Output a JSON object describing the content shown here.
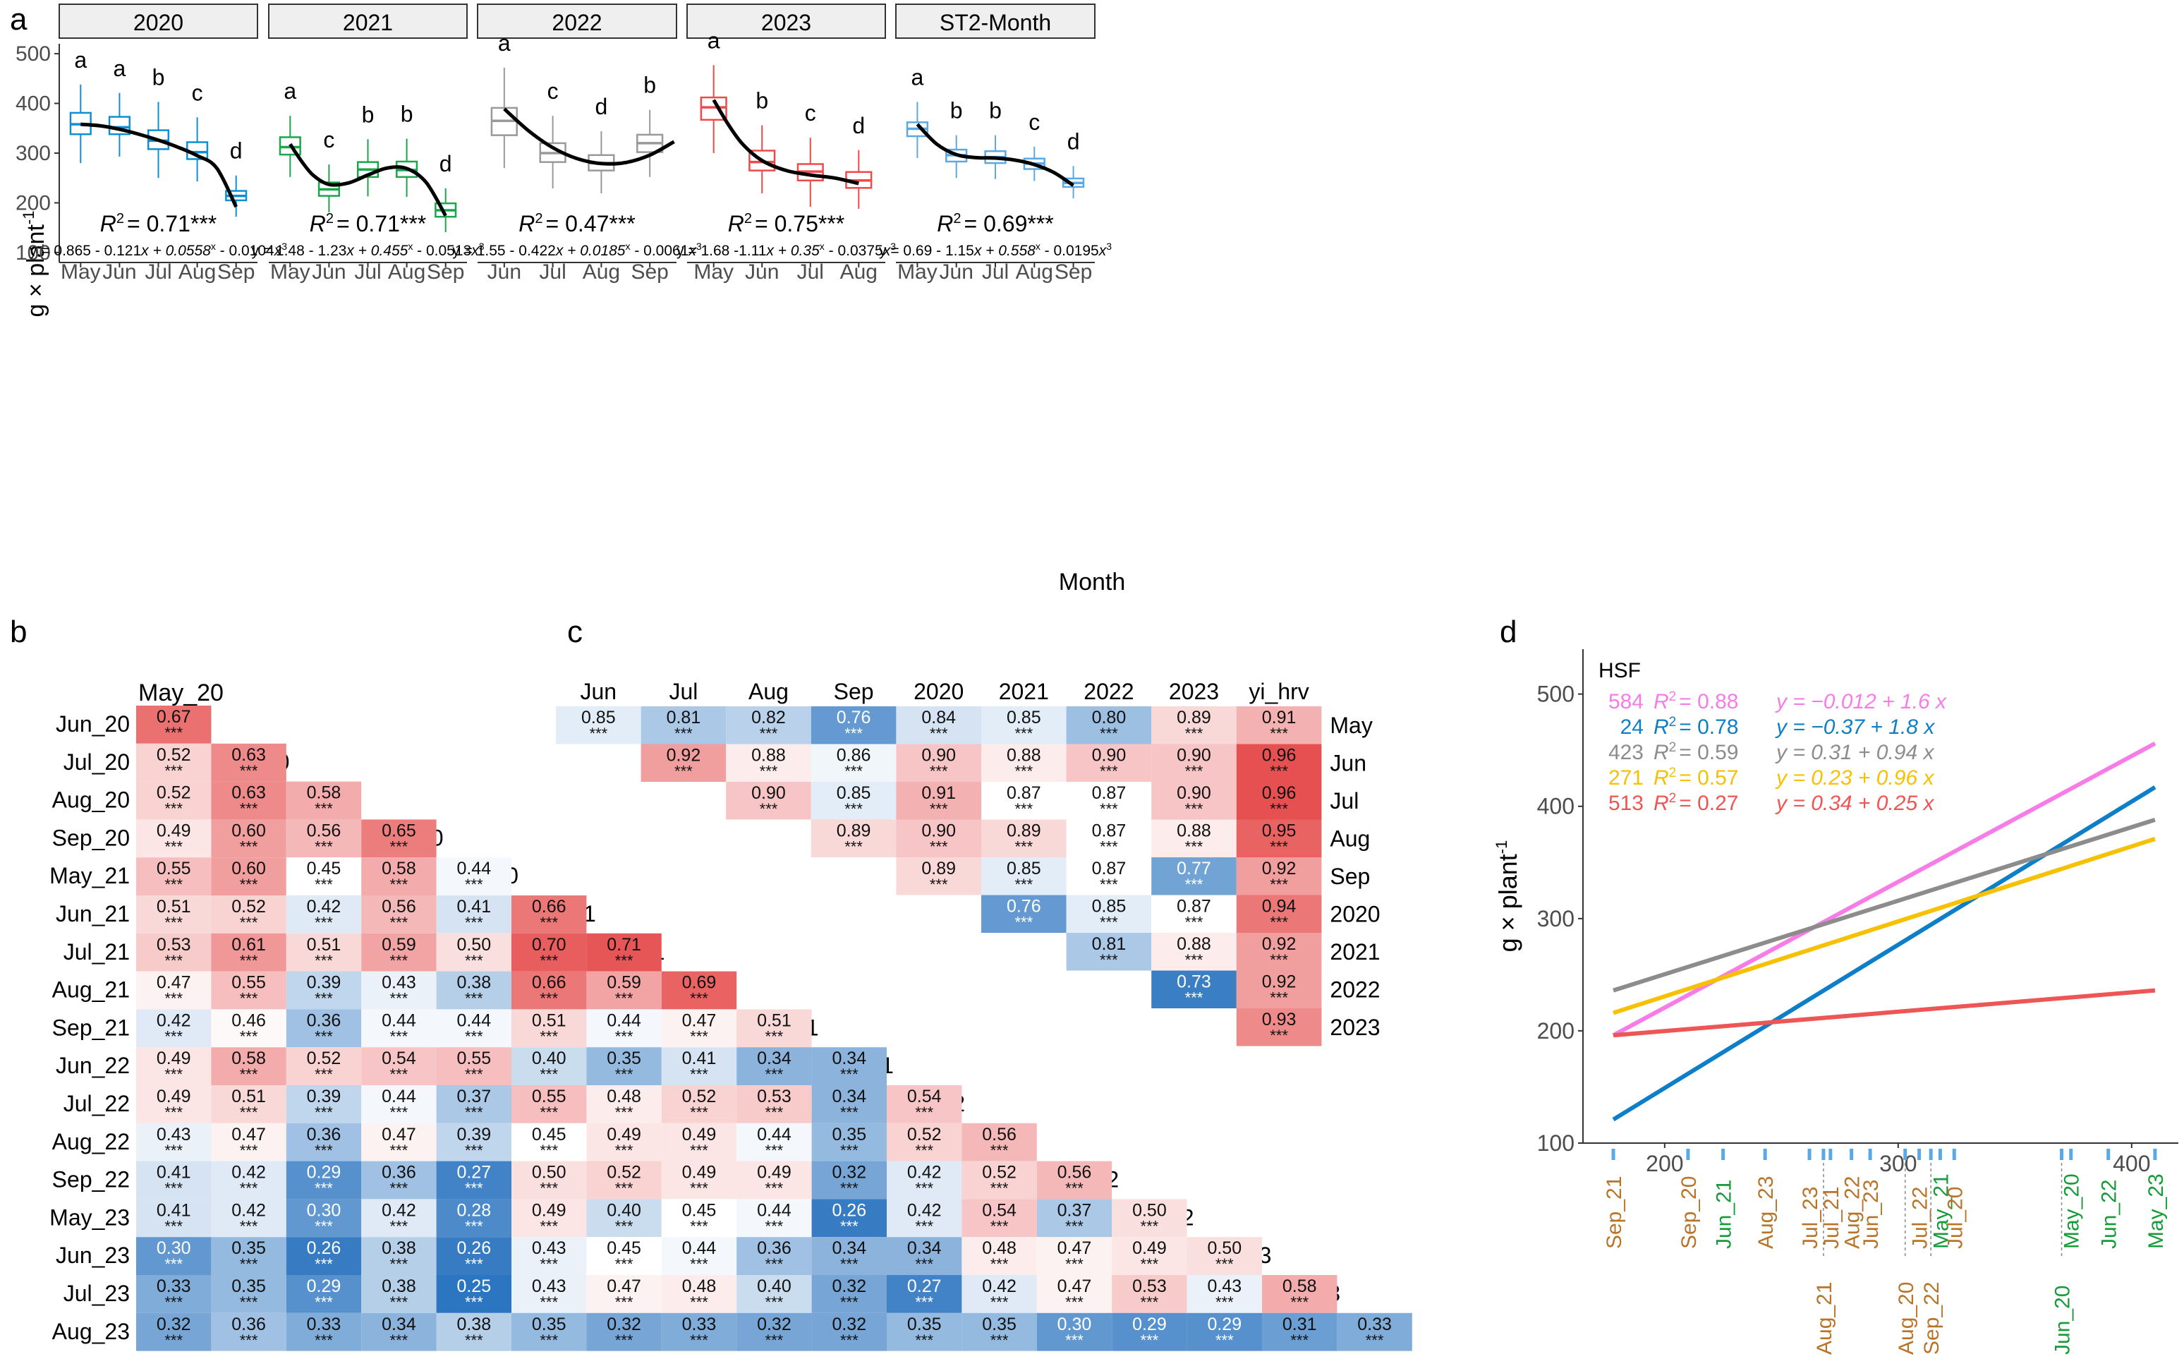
{
  "panel_a": {
    "label": "a",
    "ylabel": "g × plant",
    "ylabel_sup": "-1",
    "xlabel": "Month",
    "y_ticks": [
      "100",
      "200",
      "300",
      "400",
      "500"
    ],
    "r2_label": "R",
    "r2_sup": "2"
  },
  "panel_b": {
    "label": "b"
  },
  "panel_c": {
    "label": "c"
  },
  "panel_d": {
    "label": "d"
  },
  "chart_data": [
    {
      "type": "box",
      "panel": "a",
      "ylim": [
        80,
        520
      ],
      "facets": [
        {
          "title": "2020",
          "categories": [
            "May",
            "Jun",
            "Jul",
            "Aug",
            "Sep"
          ],
          "color": "#0e8fd3",
          "boxes": [
            {
              "lw": 280,
              "q1": 338,
              "med": 358,
              "q3": 381,
              "hw": 438
            },
            {
              "lw": 293,
              "q1": 338,
              "med": 352,
              "q3": 373,
              "hw": 421
            },
            {
              "lw": 250,
              "q1": 308,
              "med": 325,
              "q3": 346,
              "hw": 403
            },
            {
              "lw": 243,
              "q1": 288,
              "med": 302,
              "q3": 322,
              "hw": 372
            },
            {
              "lw": 172,
              "q1": 205,
              "med": 214,
              "q3": 224,
              "hw": 255
            }
          ],
          "letters": [
            "a",
            "a",
            "b",
            "c",
            "d"
          ],
          "r2": "= 0.71***",
          "eq": {
            "a": "y = 0.865 - 0.121",
            "b": "x + 0.0558",
            "c": "x",
            "d": " - 0.0104",
            "e": "x"
          },
          "curve": [
            [
              0,
              358
            ],
            [
              0.5,
              355
            ],
            [
              1,
              348
            ],
            [
              1.5,
              338
            ],
            [
              2,
              326
            ],
            [
              2.5,
              312
            ],
            [
              3,
              295
            ],
            [
              3.5,
              270
            ],
            [
              4,
              192
            ]
          ]
        },
        {
          "title": "2021",
          "categories": [
            "May",
            "Jun",
            "Jul",
            "Aug",
            "Sep"
          ],
          "color": "#1aa64a",
          "boxes": [
            {
              "lw": 252,
              "q1": 297,
              "med": 312,
              "q3": 332,
              "hw": 375
            },
            {
              "lw": 181,
              "q1": 214,
              "med": 227,
              "q3": 241,
              "hw": 277
            },
            {
              "lw": 213,
              "q1": 252,
              "med": 267,
              "q3": 282,
              "hw": 328
            },
            {
              "lw": 212,
              "q1": 252,
              "med": 266,
              "q3": 283,
              "hw": 329
            },
            {
              "lw": 141,
              "q1": 172,
              "med": 185,
              "q3": 199,
              "hw": 229
            }
          ],
          "letters": [
            "a",
            "c",
            "b",
            "b",
            "d"
          ],
          "r2": "= 0.71***",
          "eq": {
            "a": "y = 1.48 - 1.23",
            "b": "x + 0.455",
            "c": "x",
            "d": " - 0.0513",
            "e": "x"
          },
          "curve": [
            [
              0,
              318
            ],
            [
              0.3,
              283
            ],
            [
              0.6,
              255
            ],
            [
              1,
              237
            ],
            [
              1.5,
              240
            ],
            [
              2,
              256
            ],
            [
              2.5,
              270
            ],
            [
              3,
              269
            ],
            [
              3.5,
              241
            ],
            [
              4,
              174
            ]
          ]
        },
        {
          "title": "2022",
          "categories": [
            "Jun",
            "Jul",
            "Aug",
            "Sep"
          ],
          "color": "#999999",
          "boxes": [
            {
              "lw": 270,
              "q1": 336,
              "med": 365,
              "q3": 391,
              "hw": 472
            },
            {
              "lw": 229,
              "q1": 282,
              "med": 300,
              "q3": 320,
              "hw": 375
            },
            {
              "lw": 219,
              "q1": 265,
              "med": 280,
              "q3": 296,
              "hw": 344
            },
            {
              "lw": 252,
              "q1": 302,
              "med": 320,
              "q3": 337,
              "hw": 387
            }
          ],
          "letters": [
            "a",
            "c",
            "d",
            "b"
          ],
          "r2": "= 0.47***",
          "eq": {
            "a": "y = 1.55 - 0.422",
            "b": "x + 0.0185",
            "c": "x",
            "d": " - 0.0061",
            "e": "x"
          },
          "curve": [
            [
              0,
              389
            ],
            [
              0.5,
              345
            ],
            [
              1,
              311
            ],
            [
              1.5,
              289
            ],
            [
              2,
              279
            ],
            [
              2.5,
              281
            ],
            [
              3,
              296
            ],
            [
              3.5,
              323
            ]
          ]
        },
        {
          "title": "2023",
          "categories": [
            "May",
            "Jun",
            "Jul",
            "Aug"
          ],
          "color": "#ee4a4a",
          "boxes": [
            {
              "lw": 300,
              "q1": 367,
              "med": 392,
              "q3": 412,
              "hw": 477
            },
            {
              "lw": 219,
              "q1": 265,
              "med": 282,
              "q3": 305,
              "hw": 356
            },
            {
              "lw": 192,
              "q1": 245,
              "med": 263,
              "q3": 278,
              "hw": 331
            },
            {
              "lw": 188,
              "q1": 230,
              "med": 245,
              "q3": 262,
              "hw": 306
            }
          ],
          "letters": [
            "a",
            "b",
            "c",
            "d"
          ],
          "r2": "= 0.75***",
          "eq": {
            "a": "y = 1.68 -1.11",
            "b": "x + 0.35",
            "c": "x",
            "d": " - 0.0375",
            "e": "x"
          },
          "curve": [
            [
              0,
              407
            ],
            [
              0.3,
              358
            ],
            [
              0.6,
              318
            ],
            [
              1,
              285
            ],
            [
              1.5,
              265
            ],
            [
              2,
              256
            ],
            [
              2.5,
              250
            ],
            [
              3,
              239
            ]
          ]
        },
        {
          "title": "ST2-Month",
          "categories": [
            "May",
            "Jun",
            "Jul",
            "Aug",
            "Sep"
          ],
          "color": "#5aa8e6",
          "boxes": [
            {
              "lw": 290,
              "q1": 334,
              "med": 349,
              "q3": 362,
              "hw": 403
            },
            {
              "lw": 250,
              "q1": 283,
              "med": 296,
              "q3": 307,
              "hw": 336
            },
            {
              "lw": 248,
              "q1": 280,
              "med": 292,
              "q3": 304,
              "hw": 336
            },
            {
              "lw": 244,
              "q1": 268,
              "med": 279,
              "q3": 289,
              "hw": 313
            },
            {
              "lw": 209,
              "q1": 232,
              "med": 240,
              "q3": 249,
              "hw": 274
            }
          ],
          "letters": [
            "a",
            "b",
            "b",
            "c",
            "d"
          ],
          "r2": "= 0.69***",
          "eq": {
            "a": "y = 0.69 - 1.15",
            "b": "x + 0.558",
            "c": "x",
            "d": " - 0.0195",
            "e": "x"
          },
          "curve": [
            [
              0,
              358
            ],
            [
              0.5,
              318
            ],
            [
              1,
              297
            ],
            [
              1.5,
              291
            ],
            [
              2,
              290
            ],
            [
              2.5,
              286
            ],
            [
              3,
              277
            ],
            [
              3.5,
              261
            ],
            [
              4,
              235
            ]
          ]
        }
      ]
    },
    {
      "type": "heatmap",
      "panel": "b",
      "sig": "***",
      "labels": [
        "May_20",
        "Jun_20",
        "Jul_20",
        "Aug_20",
        "Sep_20",
        "May_21",
        "Jun_21",
        "Jul_21",
        "Aug_21",
        "Sep_21",
        "Jun_22",
        "Jul_22",
        "Aug_22",
        "Sep_22",
        "May_23",
        "Jun_23",
        "Jul_23",
        "Aug_23"
      ],
      "rows": [
        [
          "0.67"
        ],
        [
          "0.52",
          "0.63"
        ],
        [
          "0.52",
          "0.63",
          "0.58"
        ],
        [
          "0.49",
          "0.60",
          "0.56",
          "0.65"
        ],
        [
          "0.55",
          "0.60",
          "0.45",
          "0.58",
          "0.44"
        ],
        [
          "0.51",
          "0.52",
          "0.42",
          "0.56",
          "0.41",
          "0.66"
        ],
        [
          "0.53",
          "0.61",
          "0.51",
          "0.59",
          "0.50",
          "0.70",
          "0.71"
        ],
        [
          "0.47",
          "0.55",
          "0.39",
          "0.43",
          "0.38",
          "0.66",
          "0.59",
          "0.69"
        ],
        [
          "0.42",
          "0.46",
          "0.36",
          "0.44",
          "0.44",
          "0.51",
          "0.44",
          "0.47",
          "0.51"
        ],
        [
          "0.49",
          "0.58",
          "0.52",
          "0.54",
          "0.55",
          "0.40",
          "0.35",
          "0.41",
          "0.34",
          "0.34"
        ],
        [
          "0.49",
          "0.51",
          "0.39",
          "0.44",
          "0.37",
          "0.55",
          "0.48",
          "0.52",
          "0.53",
          "0.34",
          "0.54"
        ],
        [
          "0.43",
          "0.47",
          "0.36",
          "0.47",
          "0.39",
          "0.45",
          "0.49",
          "0.49",
          "0.44",
          "0.35",
          "0.52",
          "0.56"
        ],
        [
          "0.41",
          "0.42",
          "0.29",
          "0.36",
          "0.27",
          "0.50",
          "0.52",
          "0.49",
          "0.49",
          "0.32",
          "0.42",
          "0.52",
          "0.56"
        ],
        [
          "0.41",
          "0.42",
          "0.30",
          "0.42",
          "0.28",
          "0.49",
          "0.40",
          "0.45",
          "0.44",
          "0.26",
          "0.42",
          "0.54",
          "0.37",
          "0.50"
        ],
        [
          "0.30",
          "0.35",
          "0.26",
          "0.38",
          "0.26",
          "0.43",
          "0.45",
          "0.44",
          "0.36",
          "0.34",
          "0.34",
          "0.48",
          "0.47",
          "0.49",
          "0.50"
        ],
        [
          "0.33",
          "0.35",
          "0.29",
          "0.38",
          "0.25",
          "0.43",
          "0.47",
          "0.48",
          "0.40",
          "0.32",
          "0.27",
          "0.42",
          "0.47",
          "0.53",
          "0.43",
          "0.58"
        ],
        [
          "0.32",
          "0.36",
          "0.33",
          "0.34",
          "0.38",
          "0.35",
          "0.32",
          "0.33",
          "0.32",
          "0.32",
          "0.35",
          "0.35",
          "0.30",
          "0.29",
          "0.29",
          "0.31",
          "0.33"
        ]
      ]
    },
    {
      "type": "heatmap",
      "panel": "c",
      "sig": "***",
      "col_labels": [
        "Jun",
        "Jul",
        "Aug",
        "Sep",
        "2020",
        "2021",
        "2022",
        "2023",
        "yi_hrv"
      ],
      "row_labels": [
        "May",
        "Jun",
        "Jul",
        "Aug",
        "Sep",
        "2020",
        "2021",
        "2022",
        "2023"
      ],
      "rows": [
        [
          "0.85",
          "0.81",
          "0.82",
          "0.76",
          "0.84",
          "0.85",
          "0.80",
          "0.89",
          "0.91"
        ],
        [
          "0.92",
          "0.88",
          "0.86",
          "0.90",
          "0.88",
          "0.90",
          "0.90",
          "0.96"
        ],
        [
          "0.90",
          "0.85",
          "0.91",
          "0.87",
          "0.87",
          "0.90",
          "0.96"
        ],
        [
          "0.89",
          "0.90",
          "0.89",
          "0.87",
          "0.88",
          "0.95"
        ],
        [
          "0.89",
          "0.85",
          "0.87",
          "0.77",
          "0.92"
        ],
        [
          "0.76",
          "0.85",
          "0.87",
          "0.94"
        ],
        [
          "0.81",
          "0.88",
          "0.92"
        ],
        [
          "0.73",
          "0.92"
        ],
        [
          "0.93"
        ]
      ]
    },
    {
      "type": "line",
      "panel": "d",
      "legend_title": "HSF",
      "ylabel": "g × plant",
      "ylabel_sup": "-1",
      "xlim": [
        165,
        420
      ],
      "ylim": [
        100,
        540
      ],
      "x_ticks": [
        "200",
        "300",
        "400"
      ],
      "y_ticks": [
        "100",
        "200",
        "300",
        "400",
        "500"
      ],
      "series": [
        {
          "n": "584",
          "r2": "= 0.88",
          "eq": "y = −0.012 + 1.6 x",
          "color": "#f77ce8",
          "y0": 196,
          "y1": 456
        },
        {
          "n": "24",
          "r2": "= 0.78",
          "eq": "y = −0.37 + 1.8 x",
          "color": "#0d7fc8",
          "y0": 121,
          "y1": 417
        },
        {
          "n": "423",
          "r2": "= 0.59",
          "eq": "y = 0.31 + 0.94 x",
          "color": "#8c8c8c",
          "y0": 236,
          "y1": 388
        },
        {
          "n": "271",
          "r2": "= 0.57",
          "eq": "y = 0.23 + 0.96 x",
          "color": "#f7c000",
          "y0": 216,
          "y1": 371
        },
        {
          "n": "513",
          "r2": "= 0.27",
          "eq": "y = 0.34 + 0.25 x",
          "color": "#ee5555",
          "y0": 196,
          "y1": 236
        }
      ],
      "rug": [
        {
          "x": 178,
          "label": "Sep_21",
          "color": "#b87428",
          "pos": "top"
        },
        {
          "x": 210,
          "label": "Sep_20",
          "color": "#b87428",
          "pos": "top"
        },
        {
          "x": 225,
          "label": "Jun_21",
          "color": "#169b39",
          "pos": "top"
        },
        {
          "x": 243,
          "label": "Aug_23",
          "color": "#b87428",
          "pos": "top"
        },
        {
          "x": 262,
          "label": "Jul_23",
          "color": "#b87428",
          "pos": "top"
        },
        {
          "x": 268,
          "label": "Aug_21",
          "color": "#b87428",
          "pos": "bottom"
        },
        {
          "x": 271,
          "label": "Jul_21",
          "color": "#b87428",
          "pos": "top"
        },
        {
          "x": 280,
          "label": "Aug_22",
          "color": "#b87428",
          "pos": "top"
        },
        {
          "x": 288,
          "label": "Jun_23",
          "color": "#b87428",
          "pos": "top"
        },
        {
          "x": 303,
          "label": "Aug_20",
          "color": "#b87428",
          "pos": "bottom"
        },
        {
          "x": 309,
          "label": "Jul_22",
          "color": "#b87428",
          "pos": "top"
        },
        {
          "x": 314,
          "label": "Sep_22",
          "color": "#b87428",
          "pos": "bottom"
        },
        {
          "x": 318,
          "label": "May_21",
          "color": "#169b39",
          "pos": "top"
        },
        {
          "x": 324,
          "label": "Jul_20",
          "color": "#b87428",
          "pos": "top"
        },
        {
          "x": 370,
          "label": "Jun_20",
          "color": "#169b39",
          "pos": "bottom"
        },
        {
          "x": 374,
          "label": "May_20",
          "color": "#169b39",
          "pos": "top"
        },
        {
          "x": 390,
          "label": "Jun_22",
          "color": "#169b39",
          "pos": "top"
        },
        {
          "x": 410,
          "label": "May_23",
          "color": "#169b39",
          "pos": "top"
        }
      ]
    }
  ]
}
